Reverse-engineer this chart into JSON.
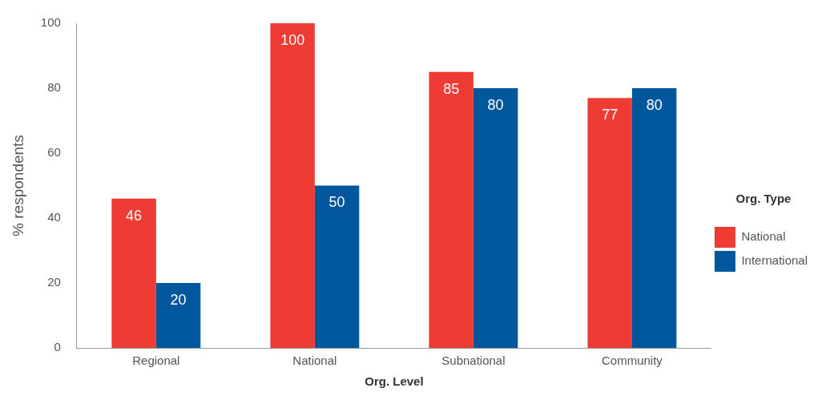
{
  "chart_data": {
    "type": "bar",
    "xlabel": "Org. Level",
    "ylabel": "% respondents",
    "legend_title": "Org. Type",
    "legend": "right",
    "categories": [
      "Regional",
      "National",
      "Subnational",
      "Community"
    ],
    "series": [
      {
        "name": "National",
        "color": "#ee3b33",
        "values": [
          46,
          100,
          85,
          77
        ]
      },
      {
        "name": "International",
        "color": "#00579c",
        "values": [
          20,
          50,
          80,
          80
        ]
      }
    ],
    "ylim": [
      0,
      100
    ],
    "yticks": [
      0,
      20,
      40,
      60,
      80,
      100
    ],
    "grid": false,
    "data_labels": true
  }
}
